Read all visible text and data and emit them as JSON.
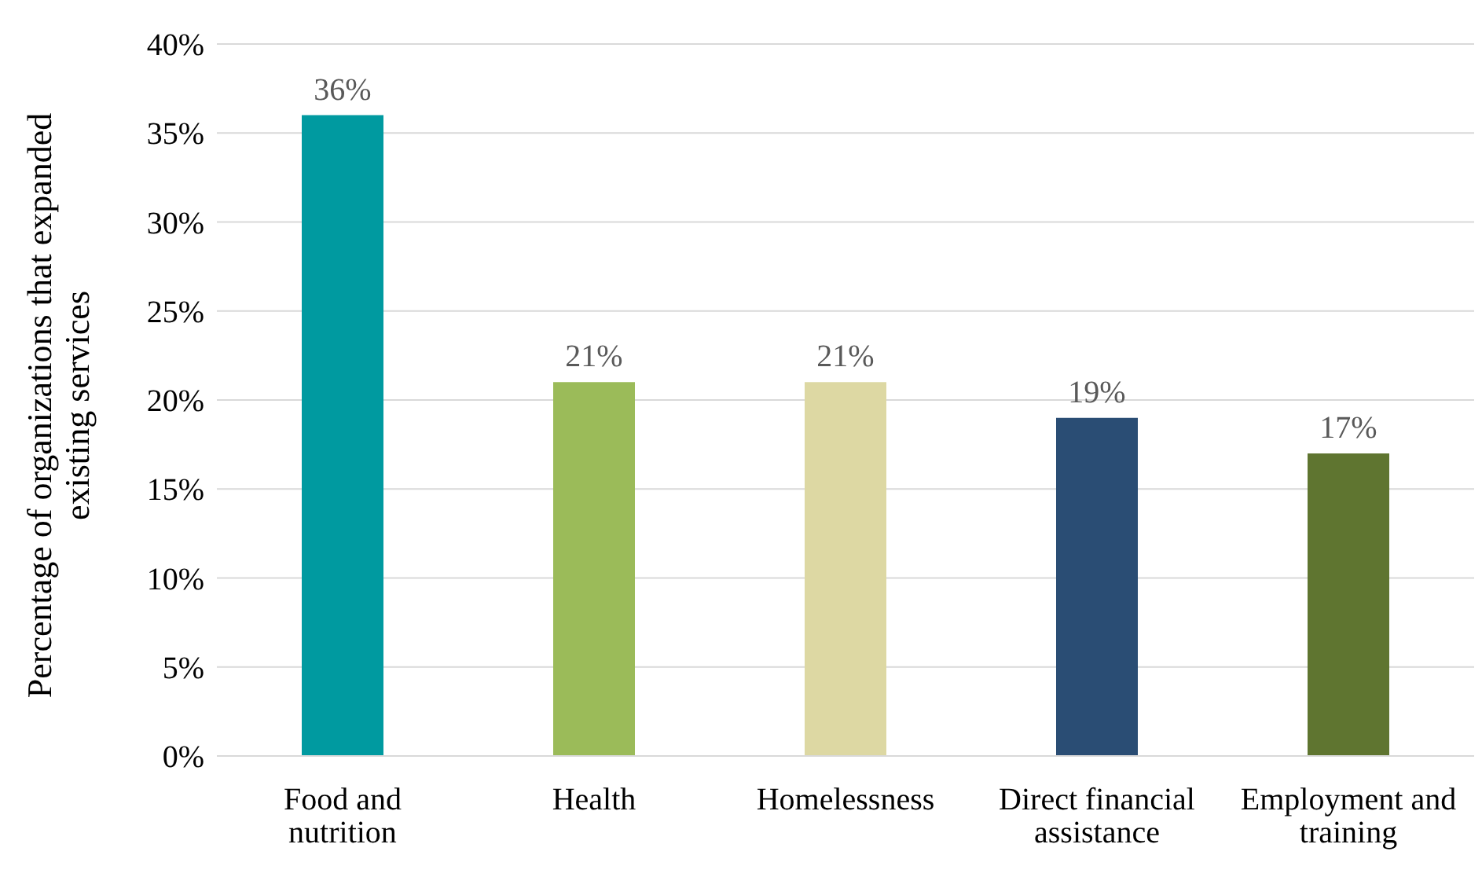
{
  "chart_data": {
    "type": "bar",
    "ylabel": "Percentage of organizations that expanded existing services",
    "categories": [
      "Food and nutrition",
      "Health",
      "Homelessness",
      "Direct financial assistance",
      "Employment and training"
    ],
    "values": [
      36,
      21,
      21,
      19,
      17
    ],
    "colors": [
      "#009aa0",
      "#9bbb59",
      "#ddd8a3",
      "#2a4d74",
      "#5f7530"
    ],
    "value_labels": [
      "36%",
      "21%",
      "21%",
      "19%",
      "17%"
    ],
    "ylim": [
      0,
      40
    ],
    "yticks": [
      {
        "value": 0,
        "label": "0%"
      },
      {
        "value": 5,
        "label": "5%"
      },
      {
        "value": 10,
        "label": "10%"
      },
      {
        "value": 15,
        "label": "15%"
      },
      {
        "value": 20,
        "label": "20%"
      },
      {
        "value": 25,
        "label": "25%"
      },
      {
        "value": 30,
        "label": "30%"
      },
      {
        "value": 35,
        "label": "35%"
      },
      {
        "value": 40,
        "label": "40%"
      }
    ],
    "grid": "y",
    "legend": false
  }
}
